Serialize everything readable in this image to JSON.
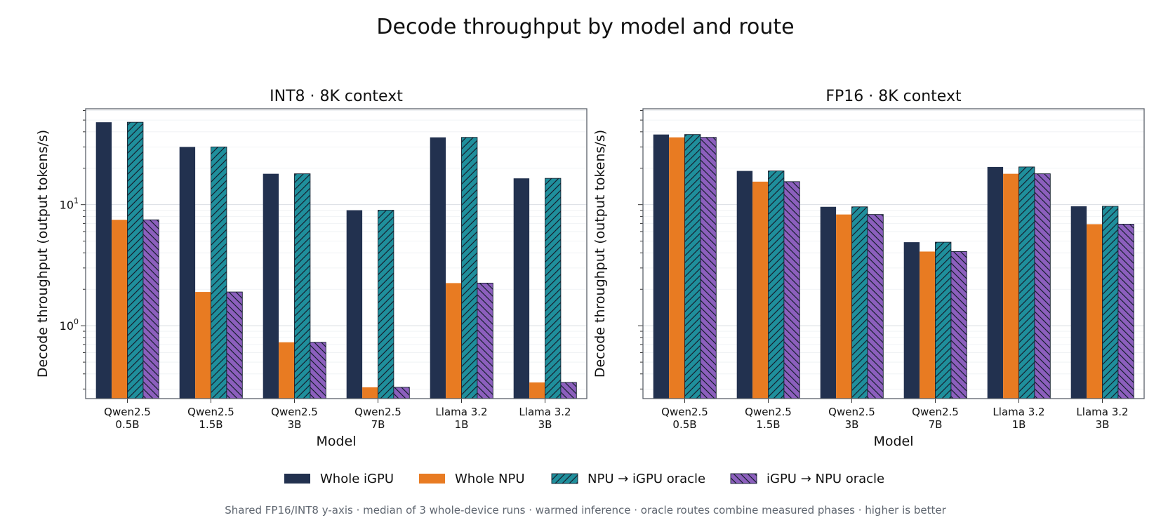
{
  "figure": {
    "title": "Decode throughput by model and route",
    "footnote": "Shared FP16/INT8 y-axis · median of 3 whole-device runs · warmed inference · oracle routes combine measured phases · higher is better"
  },
  "legend": [
    {
      "name": "Whole iGPU",
      "color": "#22314f",
      "hatch": "none"
    },
    {
      "name": "Whole NPU",
      "color": "#e87b22",
      "hatch": "none"
    },
    {
      "name": "NPU → iGPU oracle",
      "color": "#1f8f9c",
      "hatch": "forward"
    },
    {
      "name": "iGPU → NPU oracle",
      "color": "#8c5fbd",
      "hatch": "backward"
    }
  ],
  "chart_data": [
    {
      "type": "bar",
      "title": "INT8 · 8K context",
      "xlabel": "Model",
      "ylabel": "Decode throughput (output tokens/s)",
      "yscale": "log",
      "ylim": [
        0.25,
        62
      ],
      "yticks": [
        {
          "value": 1,
          "base": "10",
          "exp": "0"
        },
        {
          "value": 10,
          "base": "10",
          "exp": "1"
        }
      ],
      "categories": [
        [
          "Qwen2.5",
          "0.5B"
        ],
        [
          "Qwen2.5",
          "1.5B"
        ],
        [
          "Qwen2.5",
          "3B"
        ],
        [
          "Qwen2.5",
          "7B"
        ],
        [
          "Llama 3.2",
          "1B"
        ],
        [
          "Llama 3.2",
          "3B"
        ]
      ],
      "series": [
        {
          "name": "Whole iGPU",
          "values": [
            48,
            30,
            18,
            9,
            36,
            16.5
          ]
        },
        {
          "name": "Whole NPU",
          "values": [
            7.5,
            1.9,
            0.73,
            0.31,
            2.25,
            0.34
          ]
        },
        {
          "name": "NPU → iGPU oracle",
          "values": [
            48,
            30,
            18,
            9,
            36,
            16.5
          ]
        },
        {
          "name": "iGPU → NPU oracle",
          "values": [
            7.5,
            1.9,
            0.73,
            0.31,
            2.25,
            0.34
          ]
        }
      ],
      "grid": true,
      "show_ytick_labels": true
    },
    {
      "type": "bar",
      "title": "FP16 · 8K context",
      "xlabel": "Model",
      "ylabel": "Decode throughput (output tokens/s)",
      "yscale": "log",
      "ylim": [
        0.25,
        62
      ],
      "yticks": [],
      "categories": [
        [
          "Qwen2.5",
          "0.5B"
        ],
        [
          "Qwen2.5",
          "1.5B"
        ],
        [
          "Qwen2.5",
          "3B"
        ],
        [
          "Qwen2.5",
          "7B"
        ],
        [
          "Llama 3.2",
          "1B"
        ],
        [
          "Llama 3.2",
          "3B"
        ]
      ],
      "series": [
        {
          "name": "Whole iGPU",
          "values": [
            38,
            19,
            9.6,
            4.9,
            20.5,
            9.7
          ]
        },
        {
          "name": "Whole NPU",
          "values": [
            36,
            15.5,
            8.3,
            4.1,
            18,
            6.9
          ]
        },
        {
          "name": "NPU → iGPU oracle",
          "values": [
            38,
            19,
            9.6,
            4.9,
            20.5,
            9.7
          ]
        },
        {
          "name": "iGPU → NPU oracle",
          "values": [
            36,
            15.5,
            8.3,
            4.1,
            18,
            6.9
          ]
        }
      ],
      "grid": true,
      "show_ytick_labels": false
    }
  ]
}
